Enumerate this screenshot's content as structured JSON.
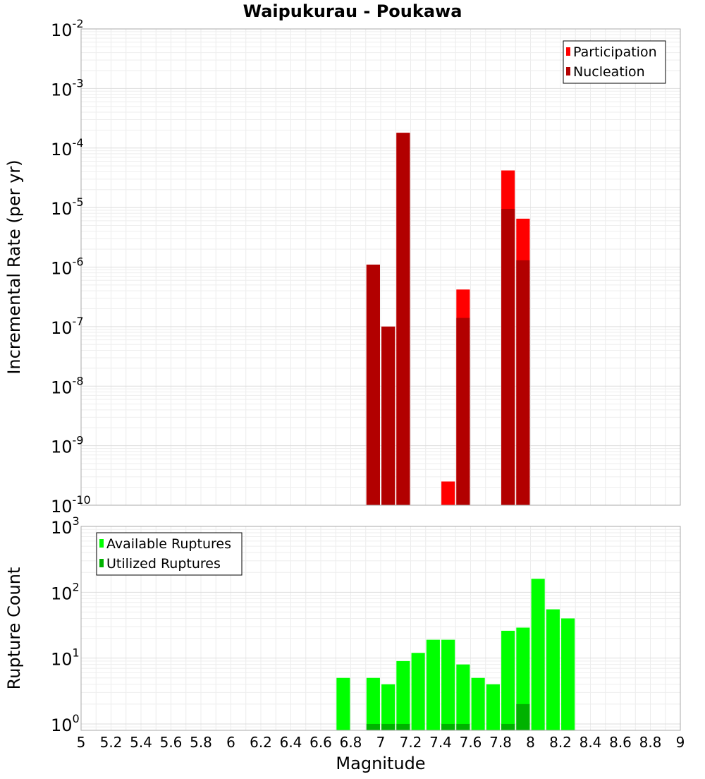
{
  "chart_data": [
    {
      "type": "bar",
      "title": "Waipukurau - Poukawa",
      "ylabel": "Incremental Rate (per yr)",
      "xlabel": "",
      "yscale": "log",
      "xlim": [
        5,
        9
      ],
      "ylim": [
        1e-10,
        0.01
      ],
      "y_tick_labels": [
        {
          "base": "10",
          "exp": "-10"
        },
        {
          "base": "10",
          "exp": "-9"
        },
        {
          "base": "10",
          "exp": "-8"
        },
        {
          "base": "10",
          "exp": "-7"
        },
        {
          "base": "10",
          "exp": "-6"
        },
        {
          "base": "10",
          "exp": "-5"
        },
        {
          "base": "10",
          "exp": "-4"
        },
        {
          "base": "10",
          "exp": "-3"
        },
        {
          "base": "10",
          "exp": "-2"
        }
      ],
      "grid": true,
      "legend_position": "top-right",
      "series": [
        {
          "name": "Participation",
          "color": "#ff0000",
          "x": [
            6.95,
            7.05,
            7.15,
            7.45,
            7.55,
            7.85,
            7.95
          ],
          "values": [
            1.1e-06,
            1e-07,
            0.00018,
            2.5e-10,
            4.2e-07,
            4.2e-05,
            6.5e-06
          ]
        },
        {
          "name": "Nucleation",
          "color": "#b20000",
          "x": [
            6.95,
            7.05,
            7.15,
            7.55,
            7.85,
            7.95
          ],
          "values": [
            1.1e-06,
            1e-07,
            0.00018,
            1.4e-07,
            9.5e-06,
            1.3e-06
          ]
        }
      ]
    },
    {
      "type": "bar",
      "title": "",
      "ylabel": "Rupture Count",
      "xlabel": "Magnitude",
      "yscale": "log",
      "xlim": [
        5,
        9
      ],
      "ylim": [
        0.8,
        1000
      ],
      "x_tick_labels": [
        "5",
        "5.2",
        "5.4",
        "5.6",
        "5.8",
        "6",
        "6.2",
        "6.4",
        "6.6",
        "6.8",
        "7",
        "7.2",
        "7.4",
        "7.6",
        "7.8",
        "8",
        "8.2",
        "8.4",
        "8.6",
        "8.8",
        "9"
      ],
      "y_tick_labels": [
        {
          "base": "10",
          "exp": "0"
        },
        {
          "base": "10",
          "exp": "1"
        },
        {
          "base": "10",
          "exp": "2"
        },
        {
          "base": "10",
          "exp": "3"
        }
      ],
      "grid": true,
      "legend_position": "top-left",
      "series": [
        {
          "name": "Available Ruptures",
          "color": "#00ff00",
          "x": [
            6.75,
            6.95,
            7.05,
            7.15,
            7.25,
            7.35,
            7.45,
            7.55,
            7.65,
            7.75,
            7.85,
            7.95,
            8.05,
            8.15,
            8.25
          ],
          "values": [
            5,
            5,
            4,
            9,
            12,
            19,
            19,
            8,
            5,
            4,
            26,
            29,
            160,
            55,
            40
          ]
        },
        {
          "name": "Utilized Ruptures",
          "color": "#00b200",
          "x": [
            6.95,
            7.05,
            7.15,
            7.45,
            7.55,
            7.85,
            7.95
          ],
          "values": [
            1,
            1,
            1,
            1,
            1,
            1,
            2
          ]
        }
      ]
    }
  ]
}
